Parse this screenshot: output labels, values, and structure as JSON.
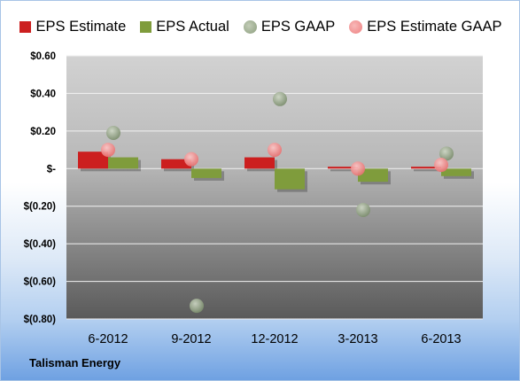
{
  "company_label": "Talisman Energy",
  "colors": {
    "eps_estimate": "#cc1f1f",
    "eps_actual": "#7f9c3c",
    "eps_gaap": "#8b9d7c",
    "eps_estimate_gaap": "#ee8080"
  },
  "chart_data": {
    "type": "bar",
    "title": "",
    "xlabel": "",
    "ylabel": "",
    "categories": [
      "6-2012",
      "9-2012",
      "12-2012",
      "3-2013",
      "6-2013"
    ],
    "ylim": [
      -0.8,
      0.6
    ],
    "yticks": [
      {
        "value": 0.6,
        "label": "$0.60"
      },
      {
        "value": 0.4,
        "label": "$0.40"
      },
      {
        "value": 0.2,
        "label": "$0.20"
      },
      {
        "value": 0.0,
        "label": "$-"
      },
      {
        "value": -0.2,
        "label": "$(0.20)"
      },
      {
        "value": -0.4,
        "label": "$(0.40)"
      },
      {
        "value": -0.6,
        "label": "$(0.60)"
      },
      {
        "value": -0.8,
        "label": "$(0.80)"
      }
    ],
    "grid": true,
    "legend_position": "top",
    "series": [
      {
        "name": "EPS Estimate",
        "kind": "bar",
        "values": [
          0.09,
          0.05,
          0.06,
          0.01,
          0.01
        ]
      },
      {
        "name": "EPS Actual",
        "kind": "bar",
        "values": [
          0.06,
          -0.05,
          -0.11,
          -0.07,
          -0.04
        ]
      },
      {
        "name": "EPS GAAP",
        "kind": "point",
        "values": [
          0.19,
          -0.73,
          0.37,
          -0.22,
          0.08
        ]
      },
      {
        "name": "EPS Estimate GAAP",
        "kind": "point",
        "values": [
          0.1,
          0.05,
          0.1,
          0.0,
          0.02
        ]
      }
    ]
  }
}
